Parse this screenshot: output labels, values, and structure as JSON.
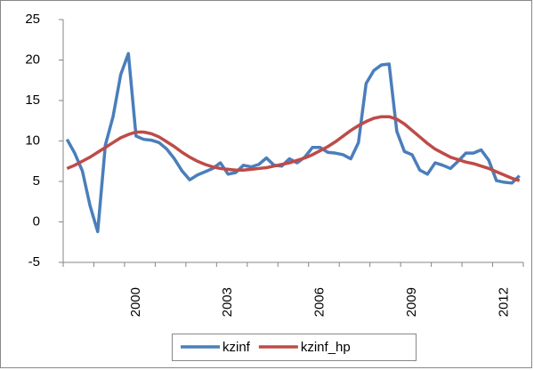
{
  "chart_data": {
    "type": "line",
    "categories": [
      null,
      null,
      null,
      null,
      null,
      null,
      null,
      null,
      null,
      "2000",
      null,
      null,
      null,
      null,
      null,
      null,
      null,
      null,
      null,
      null,
      null,
      "2003",
      null,
      null,
      null,
      null,
      null,
      null,
      null,
      null,
      null,
      null,
      null,
      "2006",
      null,
      null,
      null,
      null,
      null,
      null,
      null,
      null,
      null,
      null,
      null,
      "2009",
      null,
      null,
      null,
      null,
      null,
      null,
      null,
      null,
      null,
      null,
      null,
      "2012",
      null,
      null
    ],
    "series": [
      {
        "name": "kzinf",
        "color": "#4a7ebb",
        "values": [
          10.2,
          8.5,
          6.3,
          2,
          -1.2,
          9.5,
          13,
          18.2,
          20.8,
          10.6,
          10.2,
          10.1,
          9.8,
          9,
          7.8,
          6.3,
          5.2,
          5.8,
          6.2,
          6.6,
          7.3,
          5.9,
          6.1,
          7,
          6.8,
          7.1,
          7.9,
          7,
          6.9,
          7.8,
          7.3,
          8,
          9.2,
          9.2,
          8.6,
          8.5,
          8.3,
          7.8,
          9.8,
          17.1,
          18.7,
          19.4,
          19.5,
          11.2,
          8.7,
          8.3,
          6.4,
          5.9,
          7.3,
          7,
          6.6,
          7.5,
          8.5,
          8.5,
          8.9,
          7.6,
          5.1,
          4.9,
          4.8,
          5.7
        ]
      },
      {
        "name": "kzinf_hp",
        "color": "#be4b48",
        "values": [
          6.6,
          7.0,
          7.5,
          8.0,
          8.6,
          9.2,
          9.8,
          10.4,
          10.8,
          11.1,
          11.1,
          10.9,
          10.5,
          9.9,
          9.3,
          8.6,
          8.0,
          7.5,
          7.1,
          6.8,
          6.6,
          6.5,
          6.4,
          6.4,
          6.5,
          6.6,
          6.7,
          6.9,
          7.1,
          7.3,
          7.6,
          7.9,
          8.3,
          8.8,
          9.3,
          9.9,
          10.6,
          11.3,
          11.9,
          12.4,
          12.8,
          13.0,
          13.0,
          12.7,
          12.1,
          11.3,
          10.5,
          9.7,
          9.0,
          8.5,
          8.0,
          7.7,
          7.4,
          7.2,
          6.9,
          6.6,
          6.2,
          5.8,
          5.4,
          5.1
        ]
      }
    ],
    "ylim": [
      -5,
      25
    ],
    "yticks": [
      -5,
      0,
      5,
      10,
      15,
      20,
      25
    ],
    "legend": "bottom"
  }
}
